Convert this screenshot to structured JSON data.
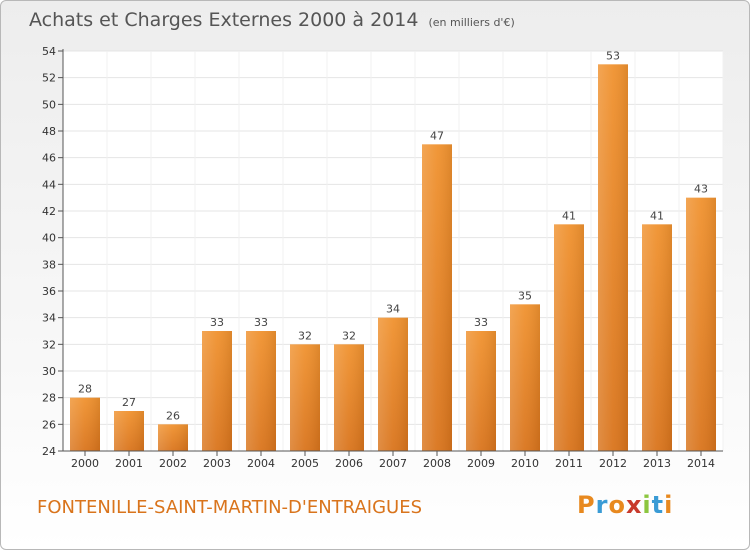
{
  "header": {
    "title": "Achats et Charges Externes 2000 à 2014",
    "subtitle": "(en milliers d'€)"
  },
  "footer": {
    "city": "FONTENILLE-SAINT-MARTIN-D'ENTRAIGUES",
    "logo_letters": [
      "P",
      "r",
      "o",
      "x",
      "i",
      "t",
      "i"
    ],
    "logo_colors": [
      "#e8891f",
      "#3a9bd5",
      "#e8891f",
      "#c83a2c",
      "#8cc63f",
      "#3a9bd5",
      "#e8891f"
    ]
  },
  "chart_data": {
    "type": "bar",
    "title": "Achats et Charges Externes 2000 à 2014",
    "subtitle": "(en milliers d'€)",
    "categories": [
      "2000",
      "2001",
      "2002",
      "2003",
      "2004",
      "2005",
      "2006",
      "2007",
      "2008",
      "2009",
      "2010",
      "2011",
      "2012",
      "2013",
      "2014"
    ],
    "values": [
      28,
      27,
      26,
      33,
      33,
      32,
      32,
      34,
      47,
      33,
      35,
      41,
      53,
      41,
      43
    ],
    "ylim": [
      24,
      54
    ],
    "yticks": [
      24,
      26,
      28,
      30,
      32,
      34,
      36,
      38,
      40,
      42,
      44,
      46,
      48,
      50,
      52,
      54
    ],
    "grid": true,
    "bar_color": "#f0922f",
    "bar_color_dark": "#d9741c"
  }
}
